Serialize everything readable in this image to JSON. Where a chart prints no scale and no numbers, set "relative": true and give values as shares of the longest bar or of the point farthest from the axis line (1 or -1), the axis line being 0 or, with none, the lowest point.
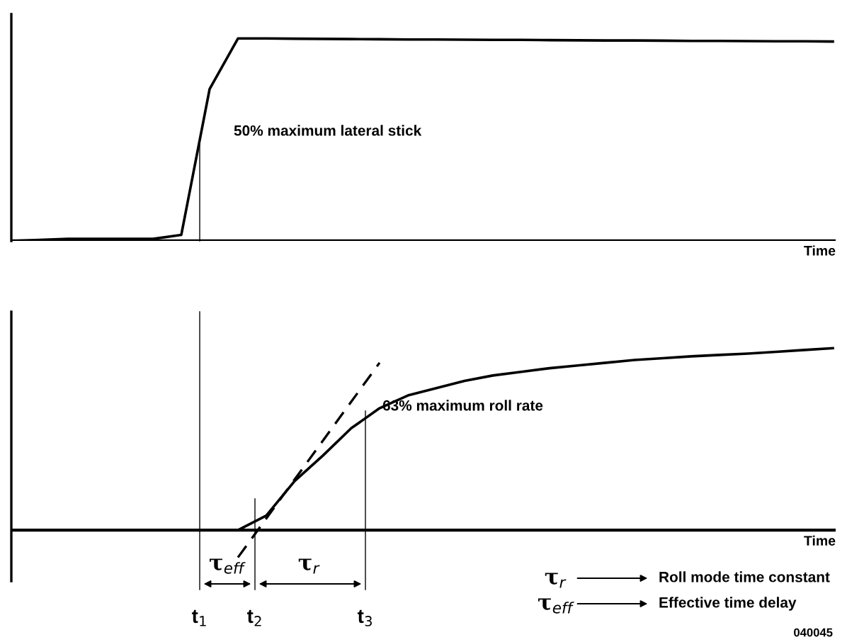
{
  "chart_data": [
    {
      "type": "line",
      "relative": true,
      "xlabel": "Time",
      "grid": false,
      "legend": false,
      "categories": [
        null,
        null,
        null,
        null,
        null,
        null,
        null,
        null,
        null,
        null,
        null,
        null,
        null,
        null,
        null,
        null,
        null,
        null,
        null,
        null,
        null,
        null,
        null,
        null,
        null,
        null,
        null,
        null,
        null,
        null
      ],
      "series": [
        {
          "color": "#000000",
          "values": [
            0,
            0.005,
            0.01,
            0.01,
            0.01,
            0.01,
            0.03,
            0.75,
            1.0,
            1.0,
            0.999,
            0.998,
            0.997,
            0.996,
            0.995,
            0.995,
            0.994,
            0.993,
            0.993,
            0.992,
            0.991,
            0.99,
            0.99,
            0.989,
            0.988,
            0.988,
            0.987,
            0.986,
            0.986,
            0.985
          ]
        }
      ],
      "annotations": [
        "50% maximum lateral stick"
      ]
    },
    {
      "type": "line",
      "relative": true,
      "xlabel": "Time",
      "grid": false,
      "legend": false,
      "categories": [
        null,
        null,
        null,
        null,
        null,
        null,
        null,
        null,
        null,
        null,
        null,
        null,
        null,
        null,
        null,
        null,
        null,
        null,
        null,
        null,
        null,
        null,
        null,
        null,
        null,
        null,
        null,
        null,
        null,
        null
      ],
      "series": [
        {
          "color": "#000000",
          "values": [
            0,
            0,
            0,
            0,
            0,
            0,
            0,
            0,
            0,
            0.08,
            0.27,
            0.41,
            0.56,
            0.67,
            0.74,
            0.78,
            0.82,
            0.85,
            0.87,
            0.89,
            0.905,
            0.92,
            0.935,
            0.945,
            0.955,
            0.963,
            0.97,
            0.98,
            0.99,
            1.0
          ]
        },
        {
          "type": "line",
          "line_style": "dashed",
          "color": "#000000",
          "values": [
            null,
            null,
            null,
            null,
            null,
            null,
            null,
            null,
            -0.15,
            null,
            null,
            null,
            null,
            0.92,
            null,
            null,
            null,
            null,
            null,
            null,
            null,
            null,
            null,
            null,
            null,
            null,
            null,
            null,
            null,
            null
          ]
        }
      ],
      "annotations": [
        "t$_{1}$",
        "t$_{2}$",
        "t$_{3}$",
        "63% maximum roll rate",
        "τ$_{eff}$",
        "τ$_{r}$",
        "τ$_{r}$",
        "Roll mode time constant",
        "τ$_{eff}$",
        "Effective time delay",
        "040045"
      ]
    }
  ]
}
